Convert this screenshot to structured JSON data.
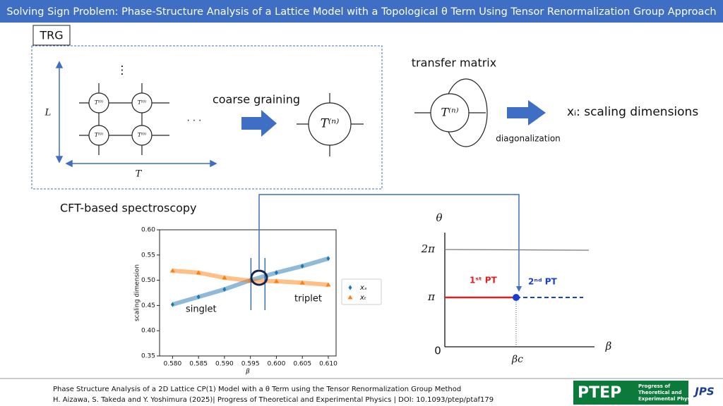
{
  "header": {
    "title": "Solving Sign Problem: Phase-Structure Analysis of a Lattice Model with a Topological θ Term Using Tensor Renormalization Group Approach"
  },
  "trg": {
    "label": "TRG",
    "l_label": "L",
    "t_label": "T",
    "tensor_label": "T⁽⁰⁾",
    "vertical_dots": "⋮",
    "horizontal_dots": "· · ·",
    "step": "coarse graining",
    "coarse_tensor": "T⁽ⁿ⁾"
  },
  "transfer": {
    "title": "transfer matrix",
    "tensor": "T⁽ⁿ⁾",
    "step": "diagonalization",
    "result": "xᵢ: scaling dimensions"
  },
  "spectroscopy": {
    "title": "CFT-based spectroscopy"
  },
  "chart_data": {
    "type": "scatter",
    "xlabel": "β",
    "ylabel": "scaling dimension",
    "x": [
      0.58,
      0.585,
      0.59,
      0.595,
      0.6,
      0.605,
      0.61
    ],
    "series": [
      {
        "name": "xₛ",
        "color": "#1f77b4",
        "marker": "diamond",
        "values": [
          0.452,
          0.467,
          0.482,
          0.5,
          0.515,
          0.528,
          0.543
        ]
      },
      {
        "name": "xₜ",
        "color": "#ff7f0e",
        "marker": "triangle",
        "values": [
          0.519,
          0.515,
          0.505,
          0.499,
          0.498,
          0.495,
          0.491
        ]
      }
    ],
    "xlim": [
      0.5775,
      0.6115
    ],
    "ylim": [
      0.35,
      0.6
    ],
    "xticks": [
      {
        "value": 0.58,
        "label": "0.580"
      },
      {
        "value": 0.585,
        "label": "0.585"
      },
      {
        "value": 0.59,
        "label": "0.590"
      },
      {
        "value": 0.595,
        "label": "0.595"
      },
      {
        "value": 0.6,
        "label": "0.600"
      },
      {
        "value": 0.605,
        "label": "0.605"
      },
      {
        "value": 0.61,
        "label": "0.610"
      }
    ],
    "yticks": [
      0.35,
      {
        "value": 0.4,
        "label": "0.40"
      },
      0.45,
      {
        "value": 0.5,
        "label": "0.50"
      },
      0.55,
      {
        "value": 0.6,
        "label": "0.60"
      }
    ],
    "vlines": [
      0.5951,
      0.5978
    ],
    "annotations": [
      "singlet",
      "triplet"
    ]
  },
  "phase": {
    "y_axis": "θ",
    "x_axis": "β",
    "two_pi": "2π",
    "pi": "π",
    "zero": "0",
    "beta_c": "βc",
    "first": "1ˢᵗ PT",
    "second": "2ⁿᵈ PT"
  },
  "footer": {
    "line1": "Phase Structure Analysis of a 2D Lattice CP(1) Model with a θ Term using the Tensor Renormalization Group Method",
    "line2": "H. Aizawa, S. Takeda and Y. Yoshimura (2025)| Progress of Theoretical and Experimental Physics | DOI: 10.1093/ptep/ptaf179",
    "logo": "PTEP",
    "logo_sub1": "Progress of",
    "logo_sub2": "Theoretical and",
    "logo_sub3": "Experimental Physics",
    "society": "JPS"
  }
}
